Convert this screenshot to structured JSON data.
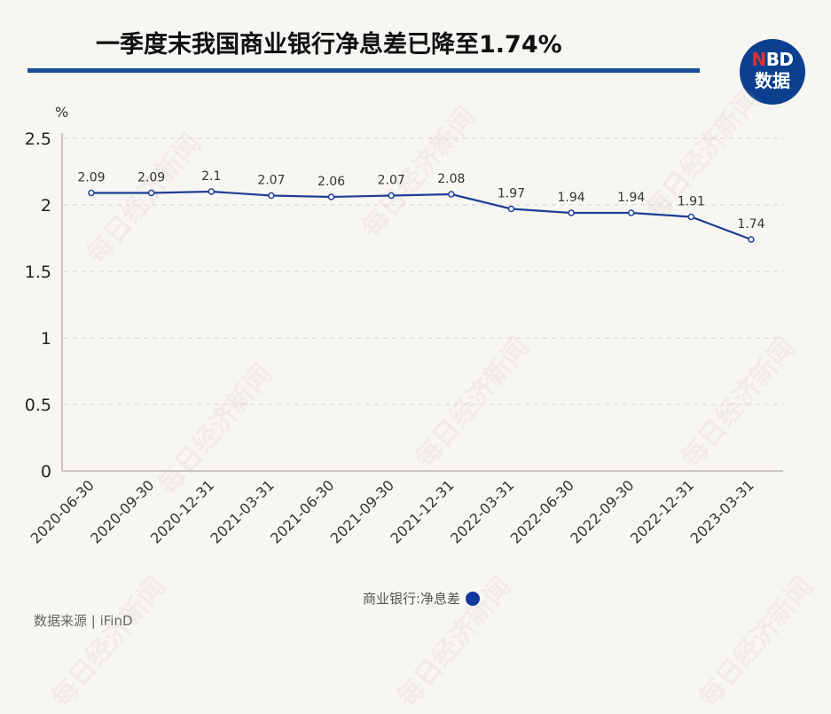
{
  "header": {
    "title": "一季度末我国商业银行净息差已降至1.74%",
    "logo_line1_accent": "N",
    "logo_line1_rest": "BD",
    "logo_line2": "数据",
    "rule_color": "#1a4c9a"
  },
  "watermark": "每日经济新闻",
  "legend": {
    "label": "商业银行:净息差",
    "color": "#1237a0"
  },
  "footer": {
    "source": "数据来源 | iFinD"
  },
  "chart_data": {
    "type": "line",
    "title": "一季度末我国商业银行净息差已降至1.74%",
    "xlabel": "",
    "ylabel": "%",
    "ylim": [
      0,
      2.5
    ],
    "yticks": [
      "0",
      "0.5",
      "1",
      "1.5",
      "2",
      "2.5"
    ],
    "grid": true,
    "legend_position": "bottom",
    "categories": [
      "2020-06-30",
      "2020-09-30",
      "2020-12-31",
      "2021-03-31",
      "2021-06-30",
      "2021-09-30",
      "2021-12-31",
      "2022-03-31",
      "2022-06-30",
      "2022-09-30",
      "2022-12-31",
      "2023-03-31"
    ],
    "series": [
      {
        "name": "商业银行:净息差",
        "color": "#1e3f95",
        "values": [
          2.09,
          2.09,
          2.1,
          2.07,
          2.06,
          2.07,
          2.08,
          1.97,
          1.94,
          1.94,
          1.91,
          1.74
        ],
        "labels": [
          "2.09",
          "2.09",
          "2.1",
          "2.07",
          "2.06",
          "2.07",
          "2.08",
          "1.97",
          "1.94",
          "1.94",
          "1.91",
          "1.74"
        ]
      }
    ]
  }
}
